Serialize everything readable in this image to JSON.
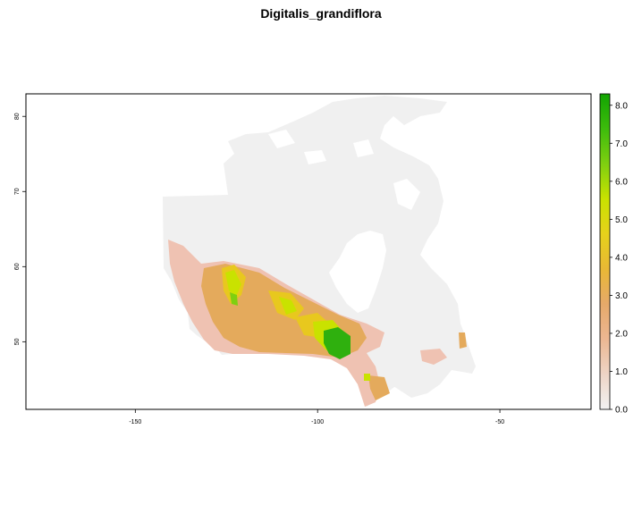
{
  "title": "Digitalis_grandiflora",
  "map": {
    "x_ticks": [
      {
        "value": -150,
        "label": "-150"
      },
      {
        "value": -100,
        "label": "-100"
      },
      {
        "value": -50,
        "label": "-50"
      }
    ],
    "y_ticks": [
      {
        "value": 50,
        "label": "50"
      },
      {
        "value": 60,
        "label": "60"
      },
      {
        "value": 70,
        "label": "70"
      },
      {
        "value": 80,
        "label": "80"
      }
    ],
    "x_range": [
      -180,
      -25
    ],
    "y_range": [
      41,
      83
    ],
    "colors": {
      "background_land": "#f0f0f0",
      "low": "#efc2b2",
      "mid": "#e4aa5c",
      "mid_high": "#e8c81e",
      "high": "#c9e200",
      "very_high": "#2fb00e"
    }
  },
  "legend": {
    "ticks": [
      "0.0",
      "1.0",
      "2.0",
      "3.0",
      "4.0",
      "5.0",
      "6.0",
      "7.0",
      "8.0"
    ],
    "min": 0,
    "max": 8.3,
    "color_stops": [
      "#f2f2f2",
      "#eed4c6",
      "#ecb792",
      "#e6a96a",
      "#e8b835",
      "#e6d11b",
      "#c9e200",
      "#7fcf10",
      "#3dbc0c",
      "#12a402"
    ]
  }
}
